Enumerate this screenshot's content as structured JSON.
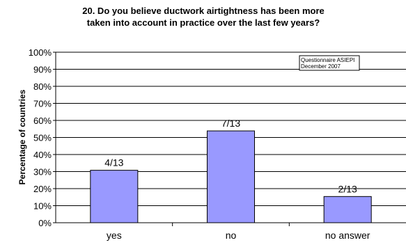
{
  "chart_data": {
    "type": "bar",
    "title_line1": "20. Do you believe ductwork airtightness has been more",
    "title_line2": "taken into account in practice over the last few years?",
    "xlabel": "",
    "ylabel": "Percentage of countries",
    "categories": [
      "yes",
      "no",
      "no answer"
    ],
    "values": [
      30.77,
      53.85,
      15.38
    ],
    "data_labels": [
      "4/13",
      "7/13",
      "2/13"
    ],
    "ylim": [
      0,
      100
    ],
    "yticks": [
      "0%",
      "10%",
      "20%",
      "30%",
      "40%",
      "50%",
      "60%",
      "70%",
      "80%",
      "90%",
      "100%"
    ],
    "grid": true,
    "bar_color": "#9999ff",
    "bar_border_color": "#000000",
    "annotation_line1": "Questionnaire ASIEPI",
    "annotation_line2": "December 2007"
  }
}
